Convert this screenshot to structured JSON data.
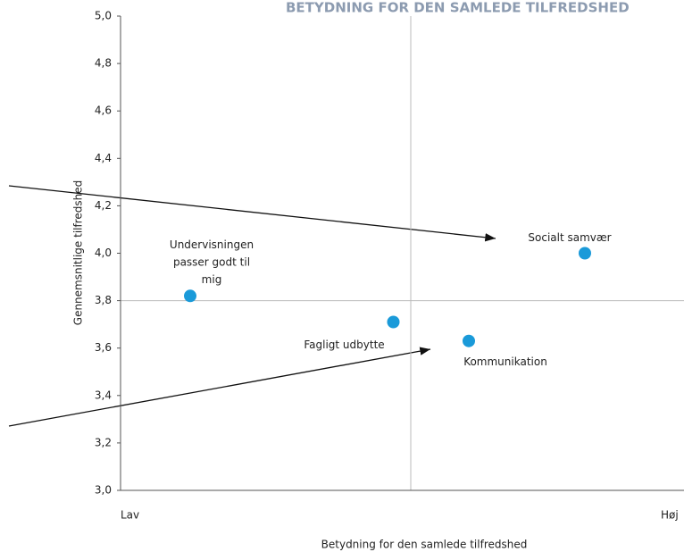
{
  "chart_data": {
    "type": "scatter",
    "title": "BETYDNING FOR DEN SAMLEDE TILFREDSHED",
    "xlabel": "Betydning for den samlede tilfredshed",
    "ylabel": "Gennemsnitlige tilfredshed",
    "xlim": [
      0,
      1
    ],
    "xticks": [
      {
        "value": 0,
        "label": "Lav"
      },
      {
        "value": 1,
        "label": "Høj"
      }
    ],
    "ylim": [
      3.0,
      5.0
    ],
    "yticks": [
      {
        "value": 3.0,
        "label": "3,0"
      },
      {
        "value": 3.2,
        "label": "3,2"
      },
      {
        "value": 3.4,
        "label": "3,4"
      },
      {
        "value": 3.6,
        "label": "3,6"
      },
      {
        "value": 3.8,
        "label": "3,8"
      },
      {
        "value": 4.0,
        "label": "4,0"
      },
      {
        "value": 4.2,
        "label": "4,2"
      },
      {
        "value": 4.4,
        "label": "4,4"
      },
      {
        "value": 4.6,
        "label": "4,6"
      },
      {
        "value": 4.8,
        "label": "4,8"
      },
      {
        "value": 5.0,
        "label": "5,0"
      }
    ],
    "xline": 0.5,
    "yline": 3.8,
    "series": [
      {
        "color": "#1a9ad9",
        "x": [
          0.12,
          0.47,
          0.6,
          0.8
        ],
        "values": [
          3.82,
          3.71,
          3.63,
          4.0
        ],
        "labels": [
          [
            "Undervisningen",
            "passer godt til",
            "mig"
          ],
          [
            "Fagligt udbytte"
          ],
          [
            "Kommunikation"
          ],
          [
            "Socialt samvær"
          ]
        ]
      }
    ]
  }
}
